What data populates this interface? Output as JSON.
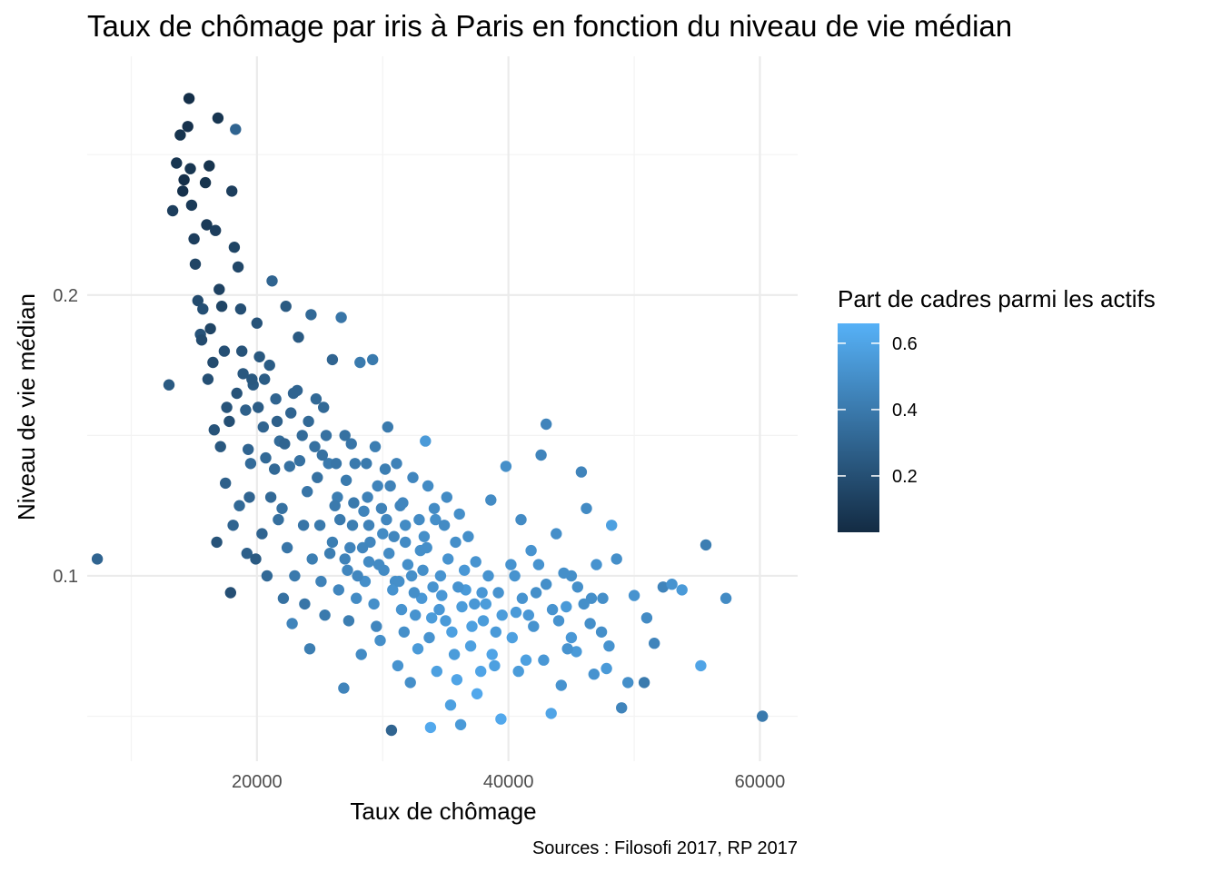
{
  "chart_data": {
    "type": "scatter",
    "title": "Taux de chômage par iris à Paris en fonction du niveau de vie médian",
    "xlabel": "Taux de chômage",
    "ylabel": "Niveau de vie médian",
    "caption": "Sources : Filosofi 2017, RP 2017",
    "xlim": [
      6500,
      63000
    ],
    "ylim": [
      0.034,
      0.285
    ],
    "x_ticks": [
      20000,
      40000,
      60000
    ],
    "x_tick_labels": [
      "20000",
      "40000",
      "60000"
    ],
    "y_ticks": [
      0.1,
      0.2
    ],
    "y_tick_labels": [
      "0.1",
      "0.2"
    ],
    "grid": true,
    "legend": {
      "title": "Part de cadres parmi les actifs",
      "position": "right",
      "type": "colorbar",
      "range": [
        0.03,
        0.66
      ],
      "ticks": [
        0.2,
        0.4,
        0.6
      ],
      "tick_labels": [
        "0.2",
        "0.4",
        "0.6"
      ],
      "color_low": "#132B43",
      "color_high": "#56B1F7"
    },
    "points": [
      [
        7300,
        0.106,
        0.3
      ],
      [
        13000,
        0.168,
        0.25
      ],
      [
        13300,
        0.23,
        0.12
      ],
      [
        13600,
        0.247,
        0.08
      ],
      [
        13900,
        0.257,
        0.07
      ],
      [
        14100,
        0.237,
        0.06
      ],
      [
        14200,
        0.241,
        0.05
      ],
      [
        14500,
        0.26,
        0.06
      ],
      [
        14600,
        0.27,
        0.05
      ],
      [
        14700,
        0.245,
        0.08
      ],
      [
        14800,
        0.232,
        0.1
      ],
      [
        15000,
        0.22,
        0.12
      ],
      [
        15100,
        0.211,
        0.15
      ],
      [
        15300,
        0.198,
        0.18
      ],
      [
        15500,
        0.186,
        0.22
      ],
      [
        15700,
        0.195,
        0.2
      ],
      [
        15900,
        0.24,
        0.07
      ],
      [
        16000,
        0.225,
        0.1
      ],
      [
        16200,
        0.246,
        0.07
      ],
      [
        16300,
        0.188,
        0.15
      ],
      [
        16500,
        0.176,
        0.18
      ],
      [
        16700,
        0.223,
        0.12
      ],
      [
        16900,
        0.263,
        0.08
      ],
      [
        17000,
        0.202,
        0.14
      ],
      [
        17200,
        0.196,
        0.15
      ],
      [
        17400,
        0.18,
        0.2
      ],
      [
        17600,
        0.16,
        0.22
      ],
      [
        17800,
        0.155,
        0.2
      ],
      [
        18000,
        0.237,
        0.12
      ],
      [
        18200,
        0.217,
        0.15
      ],
      [
        18300,
        0.259,
        0.3
      ],
      [
        18500,
        0.21,
        0.16
      ],
      [
        18700,
        0.195,
        0.2
      ],
      [
        18900,
        0.172,
        0.24
      ],
      [
        19100,
        0.159,
        0.28
      ],
      [
        19300,
        0.145,
        0.3
      ],
      [
        19500,
        0.14,
        0.33
      ],
      [
        19700,
        0.168,
        0.25
      ],
      [
        20000,
        0.19,
        0.22
      ],
      [
        20200,
        0.178,
        0.24
      ],
      [
        20500,
        0.153,
        0.3
      ],
      [
        20700,
        0.142,
        0.32
      ],
      [
        21000,
        0.175,
        0.26
      ],
      [
        21200,
        0.205,
        0.3
      ],
      [
        21500,
        0.163,
        0.3
      ],
      [
        21800,
        0.148,
        0.33
      ],
      [
        22000,
        0.124,
        0.36
      ],
      [
        22300,
        0.196,
        0.25
      ],
      [
        22600,
        0.139,
        0.36
      ],
      [
        22900,
        0.165,
        0.3
      ],
      [
        23300,
        0.185,
        0.25
      ],
      [
        23600,
        0.15,
        0.33
      ],
      [
        24000,
        0.13,
        0.38
      ],
      [
        24300,
        0.193,
        0.32
      ],
      [
        24600,
        0.146,
        0.36
      ],
      [
        25000,
        0.118,
        0.4
      ],
      [
        25300,
        0.16,
        0.32
      ],
      [
        25700,
        0.14,
        0.4
      ],
      [
        26000,
        0.177,
        0.3
      ],
      [
        26400,
        0.128,
        0.42
      ],
      [
        26700,
        0.192,
        0.38
      ],
      [
        27000,
        0.15,
        0.36
      ],
      [
        27400,
        0.11,
        0.45
      ],
      [
        27800,
        0.14,
        0.4
      ],
      [
        28200,
        0.176,
        0.4
      ],
      [
        28500,
        0.123,
        0.45
      ],
      [
        28900,
        0.105,
        0.48
      ],
      [
        29200,
        0.177,
        0.4
      ],
      [
        29600,
        0.132,
        0.45
      ],
      [
        30000,
        0.115,
        0.48
      ],
      [
        30400,
        0.153,
        0.4
      ],
      [
        30700,
        0.045,
        0.3
      ],
      [
        31000,
        0.098,
        0.5
      ],
      [
        31400,
        0.125,
        0.45
      ],
      [
        31800,
        0.112,
        0.48
      ],
      [
        32200,
        0.062,
        0.5
      ],
      [
        32600,
        0.086,
        0.52
      ],
      [
        33000,
        0.109,
        0.5
      ],
      [
        33400,
        0.148,
        0.55
      ],
      [
        33800,
        0.046,
        0.62
      ],
      [
        34200,
        0.12,
        0.5
      ],
      [
        34600,
        0.1,
        0.52
      ],
      [
        35000,
        0.084,
        0.55
      ],
      [
        35400,
        0.054,
        0.58
      ],
      [
        35800,
        0.112,
        0.5
      ],
      [
        36200,
        0.047,
        0.55
      ],
      [
        36600,
        0.095,
        0.55
      ],
      [
        37000,
        0.075,
        0.58
      ],
      [
        37400,
        0.105,
        0.52
      ],
      [
        37800,
        0.066,
        0.6
      ],
      [
        38200,
        0.09,
        0.56
      ],
      [
        38600,
        0.127,
        0.48
      ],
      [
        39000,
        0.08,
        0.55
      ],
      [
        39400,
        0.049,
        0.62
      ],
      [
        39800,
        0.139,
        0.5
      ],
      [
        40200,
        0.104,
        0.52
      ],
      [
        40600,
        0.087,
        0.55
      ],
      [
        41000,
        0.12,
        0.48
      ],
      [
        41400,
        0.07,
        0.58
      ],
      [
        41800,
        0.109,
        0.52
      ],
      [
        42200,
        0.094,
        0.5
      ],
      [
        42600,
        0.143,
        0.45
      ],
      [
        43000,
        0.154,
        0.45
      ],
      [
        43400,
        0.051,
        0.6
      ],
      [
        43800,
        0.115,
        0.5
      ],
      [
        44200,
        0.061,
        0.52
      ],
      [
        44600,
        0.089,
        0.55
      ],
      [
        45000,
        0.1,
        0.5
      ],
      [
        45400,
        0.073,
        0.55
      ],
      [
        45800,
        0.137,
        0.45
      ],
      [
        46200,
        0.124,
        0.48
      ],
      [
        46600,
        0.092,
        0.5
      ],
      [
        47000,
        0.104,
        0.52
      ],
      [
        47400,
        0.08,
        0.5
      ],
      [
        47800,
        0.067,
        0.55
      ],
      [
        48200,
        0.118,
        0.58
      ],
      [
        48600,
        0.106,
        0.5
      ],
      [
        49000,
        0.053,
        0.45
      ],
      [
        49500,
        0.062,
        0.5
      ],
      [
        50000,
        0.093,
        0.52
      ],
      [
        50800,
        0.062,
        0.4
      ],
      [
        51600,
        0.076,
        0.45
      ],
      [
        52300,
        0.096,
        0.45
      ],
      [
        53000,
        0.097,
        0.52
      ],
      [
        53800,
        0.095,
        0.55
      ],
      [
        55300,
        0.068,
        0.6
      ],
      [
        55700,
        0.111,
        0.42
      ],
      [
        57300,
        0.092,
        0.48
      ],
      [
        60200,
        0.05,
        0.4
      ],
      [
        15600,
        0.184,
        0.18
      ],
      [
        16100,
        0.17,
        0.2
      ],
      [
        16600,
        0.152,
        0.22
      ],
      [
        17100,
        0.146,
        0.24
      ],
      [
        17500,
        0.133,
        0.28
      ],
      [
        18100,
        0.118,
        0.3
      ],
      [
        18600,
        0.125,
        0.32
      ],
      [
        19200,
        0.108,
        0.28
      ],
      [
        19900,
        0.106,
        0.25
      ],
      [
        17900,
        0.094,
        0.2
      ],
      [
        16800,
        0.112,
        0.22
      ],
      [
        20400,
        0.115,
        0.3
      ],
      [
        21100,
        0.128,
        0.32
      ],
      [
        21700,
        0.12,
        0.35
      ],
      [
        22400,
        0.11,
        0.38
      ],
      [
        23000,
        0.1,
        0.4
      ],
      [
        23700,
        0.118,
        0.38
      ],
      [
        24400,
        0.106,
        0.42
      ],
      [
        25100,
        0.098,
        0.44
      ],
      [
        25800,
        0.108,
        0.42
      ],
      [
        26500,
        0.095,
        0.46
      ],
      [
        27200,
        0.102,
        0.46
      ],
      [
        27900,
        0.092,
        0.48
      ],
      [
        28600,
        0.098,
        0.5
      ],
      [
        29300,
        0.09,
        0.5
      ],
      [
        30100,
        0.102,
        0.48
      ],
      [
        30800,
        0.095,
        0.52
      ],
      [
        31500,
        0.088,
        0.52
      ],
      [
        32300,
        0.1,
        0.5
      ],
      [
        33100,
        0.092,
        0.54
      ],
      [
        33900,
        0.085,
        0.56
      ],
      [
        34700,
        0.093,
        0.54
      ],
      [
        35500,
        0.08,
        0.58
      ],
      [
        36300,
        0.089,
        0.56
      ],
      [
        37100,
        0.082,
        0.58
      ],
      [
        37900,
        0.094,
        0.54
      ],
      [
        38700,
        0.072,
        0.6
      ],
      [
        39500,
        0.086,
        0.56
      ],
      [
        40300,
        0.078,
        0.58
      ],
      [
        41100,
        0.092,
        0.52
      ],
      [
        42000,
        0.082,
        0.52
      ],
      [
        43000,
        0.097,
        0.5
      ],
      [
        44000,
        0.084,
        0.52
      ],
      [
        45000,
        0.078,
        0.54
      ],
      [
        46000,
        0.09,
        0.5
      ],
      [
        22800,
        0.083,
        0.45
      ],
      [
        24200,
        0.074,
        0.42
      ],
      [
        26900,
        0.06,
        0.45
      ],
      [
        28300,
        0.072,
        0.48
      ],
      [
        29800,
        0.077,
        0.5
      ],
      [
        31200,
        0.068,
        0.52
      ],
      [
        32800,
        0.074,
        0.55
      ],
      [
        34300,
        0.066,
        0.58
      ],
      [
        35900,
        0.063,
        0.6
      ],
      [
        37500,
        0.058,
        0.62
      ],
      [
        38900,
        0.068,
        0.58
      ],
      [
        40800,
        0.066,
        0.56
      ],
      [
        42800,
        0.07,
        0.54
      ],
      [
        44700,
        0.074,
        0.52
      ],
      [
        46800,
        0.065,
        0.52
      ],
      [
        24800,
        0.135,
        0.36
      ],
      [
        26200,
        0.125,
        0.4
      ],
      [
        27600,
        0.118,
        0.42
      ],
      [
        29000,
        0.112,
        0.46
      ],
      [
        30500,
        0.108,
        0.48
      ],
      [
        32000,
        0.104,
        0.5
      ],
      [
        33500,
        0.11,
        0.5
      ],
      [
        35200,
        0.106,
        0.52
      ],
      [
        36800,
        0.114,
        0.5
      ],
      [
        38400,
        0.1,
        0.52
      ],
      [
        23400,
        0.141,
        0.36
      ],
      [
        25500,
        0.15,
        0.36
      ],
      [
        27100,
        0.134,
        0.4
      ],
      [
        28800,
        0.128,
        0.44
      ],
      [
        30300,
        0.12,
        0.46
      ],
      [
        31800,
        0.118,
        0.48
      ],
      [
        33300,
        0.114,
        0.5
      ],
      [
        34900,
        0.118,
        0.48
      ],
      [
        36500,
        0.102,
        0.54
      ],
      [
        21400,
        0.138,
        0.32
      ],
      [
        19400,
        0.128,
        0.3
      ],
      [
        20800,
        0.1,
        0.32
      ],
      [
        22100,
        0.092,
        0.36
      ],
      [
        23800,
        0.09,
        0.38
      ],
      [
        25400,
        0.086,
        0.4
      ],
      [
        27300,
        0.084,
        0.42
      ],
      [
        29500,
        0.082,
        0.46
      ],
      [
        31700,
        0.08,
        0.5
      ],
      [
        33700,
        0.078,
        0.52
      ],
      [
        35700,
        0.072,
        0.56
      ],
      [
        26000,
        0.112,
        0.42
      ],
      [
        27000,
        0.106,
        0.44
      ],
      [
        28000,
        0.1,
        0.46
      ],
      [
        28400,
        0.11,
        0.46
      ],
      [
        29700,
        0.104,
        0.48
      ],
      [
        30900,
        0.114,
        0.46
      ],
      [
        31300,
        0.098,
        0.5
      ],
      [
        32500,
        0.094,
        0.5
      ],
      [
        33200,
        0.102,
        0.5
      ],
      [
        34000,
        0.096,
        0.52
      ],
      [
        34500,
        0.088,
        0.54
      ],
      [
        36000,
        0.096,
        0.52
      ],
      [
        37300,
        0.09,
        0.54
      ],
      [
        38000,
        0.084,
        0.56
      ],
      [
        39200,
        0.094,
        0.52
      ],
      [
        40500,
        0.1,
        0.52
      ],
      [
        41600,
        0.086,
        0.54
      ],
      [
        43500,
        0.088,
        0.52
      ],
      [
        45500,
        0.096,
        0.5
      ],
      [
        47500,
        0.092,
        0.5
      ],
      [
        48000,
        0.075,
        0.52
      ],
      [
        51000,
        0.085,
        0.48
      ],
      [
        46500,
        0.083,
        0.5
      ],
      [
        44400,
        0.101,
        0.5
      ],
      [
        42400,
        0.104,
        0.52
      ],
      [
        26600,
        0.12,
        0.4
      ],
      [
        27700,
        0.126,
        0.4
      ],
      [
        28900,
        0.118,
        0.44
      ],
      [
        29900,
        0.124,
        0.44
      ],
      [
        30600,
        0.132,
        0.44
      ],
      [
        31600,
        0.126,
        0.46
      ],
      [
        32900,
        0.12,
        0.48
      ],
      [
        34100,
        0.124,
        0.48
      ],
      [
        35100,
        0.128,
        0.48
      ],
      [
        36100,
        0.122,
        0.5
      ],
      [
        18400,
        0.165,
        0.22
      ],
      [
        18800,
        0.18,
        0.22
      ],
      [
        19600,
        0.17,
        0.24
      ],
      [
        20100,
        0.16,
        0.26
      ],
      [
        20600,
        0.17,
        0.26
      ],
      [
        21600,
        0.155,
        0.28
      ],
      [
        22200,
        0.147,
        0.3
      ],
      [
        22700,
        0.158,
        0.3
      ],
      [
        23200,
        0.166,
        0.3
      ],
      [
        24100,
        0.155,
        0.32
      ],
      [
        24700,
        0.163,
        0.32
      ],
      [
        25200,
        0.143,
        0.36
      ],
      [
        26300,
        0.14,
        0.38
      ],
      [
        27500,
        0.147,
        0.38
      ],
      [
        28700,
        0.14,
        0.4
      ],
      [
        29400,
        0.146,
        0.42
      ],
      [
        30200,
        0.138,
        0.42
      ],
      [
        31100,
        0.14,
        0.44
      ],
      [
        32400,
        0.135,
        0.46
      ],
      [
        33600,
        0.132,
        0.48
      ]
    ]
  }
}
